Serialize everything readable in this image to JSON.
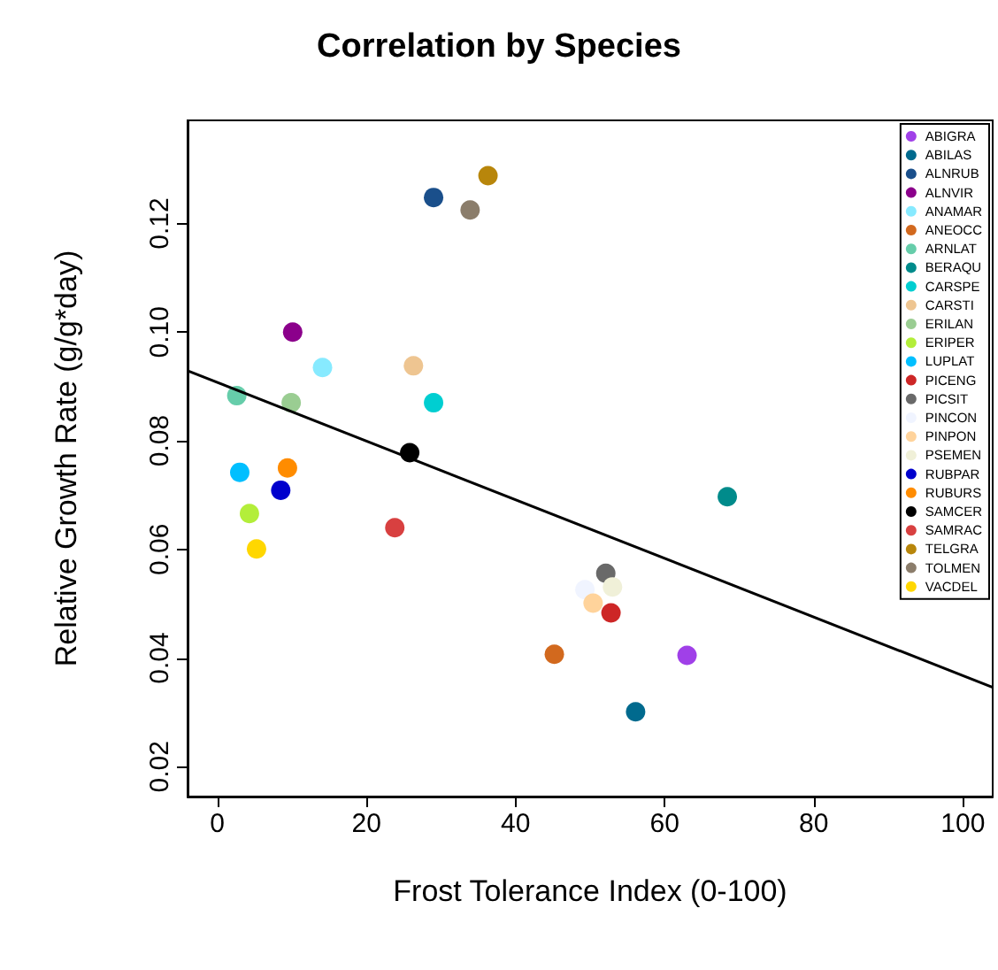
{
  "chart_data": {
    "type": "scatter",
    "title": "Correlation by Species",
    "xlabel": "Frost Tolerance Index (0-100)",
    "ylabel": "Relative Growth Rate (g/g*day)",
    "xlim": [
      -4,
      104
    ],
    "ylim": [
      0.0145,
      0.139
    ],
    "xticks": [
      0,
      20,
      40,
      60,
      80,
      100
    ],
    "yticks": [
      0.02,
      0.04,
      0.06,
      0.08,
      {
        "value": 0.1,
        "label": "0.10"
      },
      0.12
    ],
    "grid": false,
    "legend": "top right",
    "marker": "circle",
    "series": [
      {
        "name": "ABIGRA",
        "color": "#a040e8",
        "x": [
          63.0
        ],
        "values": [
          0.0405
        ]
      },
      {
        "name": "ABILAS",
        "color": "#006a8e",
        "x": [
          56.1
        ],
        "values": [
          0.0301
        ]
      },
      {
        "name": "ALNRUB",
        "color": "#1a4f8b",
        "x": [
          29.0
        ],
        "values": [
          0.1248
        ]
      },
      {
        "name": "ALNVIR",
        "color": "#8b008b",
        "x": [
          10.1
        ],
        "values": [
          0.1
        ]
      },
      {
        "name": "ANAMAR",
        "color": "#87eaff",
        "x": [
          14.1
        ],
        "values": [
          0.0935
        ]
      },
      {
        "name": "ANEOCC",
        "color": "#d2691e",
        "x": [
          45.2
        ],
        "values": [
          0.0407
        ]
      },
      {
        "name": "ARNLAT",
        "color": "#66cdaa",
        "x": [
          2.6
        ],
        "values": [
          0.0883
        ]
      },
      {
        "name": "BERAQU",
        "color": "#008b8b",
        "x": [
          68.4
        ],
        "values": [
          0.0697
        ]
      },
      {
        "name": "CARSPE",
        "color": "#00ced1",
        "x": [
          29.0
        ],
        "values": [
          0.087
        ]
      },
      {
        "name": "CARSTI",
        "color": "#eec591",
        "x": [
          26.3
        ],
        "values": [
          0.0938
        ]
      },
      {
        "name": "ERILAN",
        "color": "#9acd92",
        "x": [
          9.9
        ],
        "values": [
          0.087
        ]
      },
      {
        "name": "ERIPER",
        "color": "#b3ee3a",
        "x": [
          4.3
        ],
        "values": [
          0.0666
        ]
      },
      {
        "name": "LUPLAT",
        "color": "#00bfff",
        "x": [
          3.0
        ],
        "values": [
          0.0742
        ]
      },
      {
        "name": "PICENG",
        "color": "#cd2626",
        "x": [
          52.8
        ],
        "values": [
          0.0483
        ]
      },
      {
        "name": "PICSIT",
        "color": "#696969",
        "x": [
          52.1
        ],
        "values": [
          0.0556
        ]
      },
      {
        "name": "PINCON",
        "color": "#f0f4ff",
        "x": [
          49.3
        ],
        "values": [
          0.0526
        ]
      },
      {
        "name": "PINPON",
        "color": "#ffd39b",
        "x": [
          50.4
        ],
        "values": [
          0.0501
        ]
      },
      {
        "name": "PSEMEN",
        "color": "#f0f0d8",
        "x": [
          53.0
        ],
        "values": [
          0.0531
        ]
      },
      {
        "name": "RUBPAR",
        "color": "#0000cd",
        "x": [
          8.5
        ],
        "values": [
          0.0709
        ]
      },
      {
        "name": "RUBURS",
        "color": "#ff8c00",
        "x": [
          9.4
        ],
        "values": [
          0.075
        ]
      },
      {
        "name": "SAMCER",
        "color": "#000000",
        "x": [
          25.8
        ],
        "values": [
          0.0778
        ]
      },
      {
        "name": "SAMRAC",
        "color": "#d84040",
        "x": [
          23.8
        ],
        "values": [
          0.064
        ]
      },
      {
        "name": "TELGRA",
        "color": "#b8860b",
        "x": [
          36.3
        ],
        "values": [
          0.1288
        ]
      },
      {
        "name": "TOLMEN",
        "color": "#8b7d6b",
        "x": [
          33.9
        ],
        "values": [
          0.1225
        ]
      },
      {
        "name": "VACDEL",
        "color": "#ffd700",
        "x": [
          5.25
        ],
        "values": [
          0.0601
        ]
      },
      {
        "type": "line",
        "color": "#000000",
        "x": [
          -4,
          104
        ],
        "values": [
          0.0929,
          0.0346
        ],
        "marker": "none",
        "line_style": "solid"
      }
    ]
  }
}
